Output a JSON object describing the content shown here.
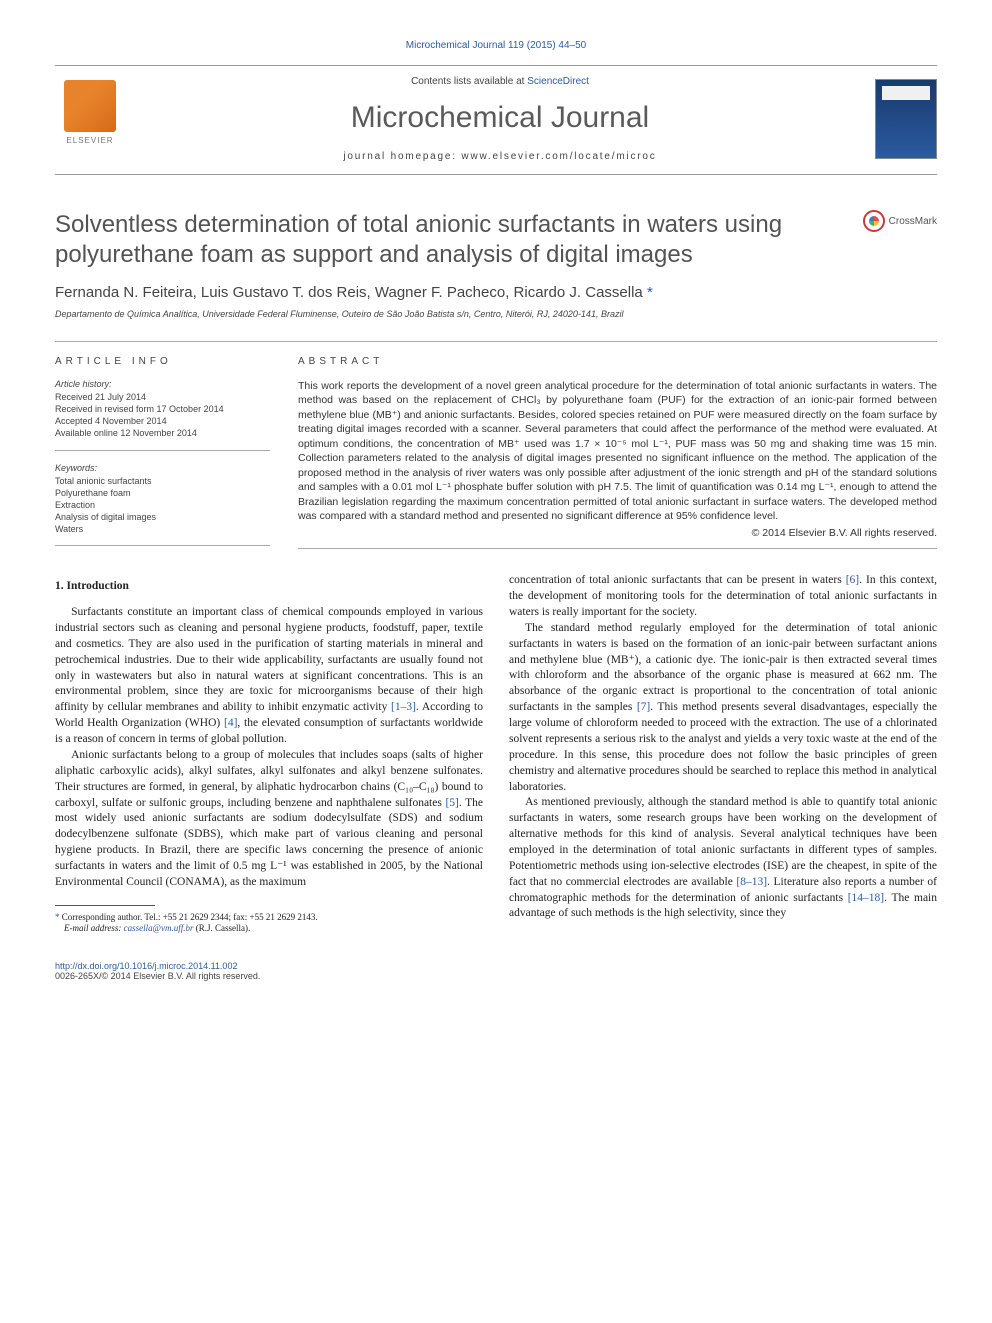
{
  "top_journal_ref": "Microchemical Journal 119 (2015) 44–50",
  "header": {
    "contents_prefix": "Contents lists available at ",
    "contents_link": "ScienceDirect",
    "journal_title": "Microchemical Journal",
    "homepage_label": "journal homepage: www.elsevier.com/locate/microc",
    "publisher_name": "ELSEVIER"
  },
  "crossmark_label": "CrossMark",
  "article": {
    "title": "Solventless determination of total anionic surfactants in waters using polyurethane foam as support and analysis of digital images",
    "authors": "Fernanda N. Feiteira, Luis Gustavo T. dos Reis, Wagner F. Pacheco, Ricardo J. Cassella ",
    "corresponding_mark": "*",
    "affiliation": "Departamento de Química Analítica, Universidade Federal Fluminense, Outeiro de São João Batista s/n, Centro, Niterói, RJ, 24020-141, Brazil"
  },
  "article_info": {
    "heading": "article info",
    "history_label": "Article history:",
    "received": "Received 21 July 2014",
    "revised": "Received in revised form 17 October 2014",
    "accepted": "Accepted 4 November 2014",
    "online": "Available online 12 November 2014",
    "keywords_label": "Keywords:",
    "keywords": [
      "Total anionic surfactants",
      "Polyurethane foam",
      "Extraction",
      "Analysis of digital images",
      "Waters"
    ]
  },
  "abstract": {
    "heading": "abstract",
    "body": "This work reports the development of a novel green analytical procedure for the determination of total anionic surfactants in waters. The method was based on the replacement of CHCl₃ by polyurethane foam (PUF) for the extraction of an ionic-pair formed between methylene blue (MB⁺) and anionic surfactants. Besides, colored species retained on PUF were measured directly on the foam surface by treating digital images recorded with a scanner. Several parameters that could affect the performance of the method were evaluated. At optimum conditions, the concentration of MB⁺ used was 1.7 × 10⁻⁵ mol L⁻¹, PUF mass was 50 mg and shaking time was 15 min. Collection parameters related to the analysis of digital images presented no significant influence on the method. The application of the proposed method in the analysis of river waters was only possible after adjustment of the ionic strength and pH of the standard solutions and samples with a 0.01 mol L⁻¹ phosphate buffer solution with pH 7.5. The limit of quantification was 0.14 mg L⁻¹, enough to attend the Brazilian legislation regarding the maximum concentration permitted of total anionic surfactant in surface waters. The developed method was compared with a standard method and presented no significant difference at 95% confidence level.",
    "copyright": "© 2014 Elsevier B.V. All rights reserved."
  },
  "intro": {
    "heading": "1. Introduction",
    "p1a": "Surfactants constitute an important class of chemical compounds employed in various industrial sectors such as cleaning and personal hygiene products, foodstuff, paper, textile and cosmetics. They are also used in the purification of starting materials in mineral and petrochemical industries. Due to their wide applicability, surfactants are usually found not only in wastewaters but also in natural waters at significant concentrations. This is an environmental problem, since they are toxic for microorganisms because of their high affinity by cellular membranes and ability to inhibit enzymatic activity ",
    "cite1": "[1–3]",
    "p1b": ". According to World Health Organization (WHO) ",
    "cite2": "[4]",
    "p1c": ", the elevated consumption of surfactants worldwide is a reason of concern in terms of global pollution.",
    "p2a": "Anionic surfactants belong to a group of molecules that includes soaps (salts of higher aliphatic carboxylic acids), alkyl sulfates, alkyl sulfonates and alkyl benzene sulfonates. Their structures are formed, in general, by aliphatic hydrocarbon chains (C₁₀–C₁₈) bound to carboxyl, sulfate or sulfonic groups, including benzene and naphthalene sulfonates ",
    "cite3": "[5]",
    "p2b": ". The most widely used anionic surfactants are sodium dodecylsulfate (SDS) and sodium dodecylbenzene sulfonate (SDBS), which make part of various cleaning and personal hygiene products. In Brazil, there are specific laws concerning the presence of anionic surfactants in waters and the limit of 0.5 mg L⁻¹ was established in 2005, by the National Environmental Council (CONAMA), as the maximum",
    "p3a": "concentration of total anionic surfactants that can be present in waters ",
    "cite4": "[6]",
    "p3b": ". In this context, the development of monitoring tools for the determination of total anionic surfactants in waters is really important for the society.",
    "p4a": "The standard method regularly employed for the determination of total anionic surfactants in waters is based on the formation of an ionic-pair between surfactant anions and methylene blue (MB⁺), a cationic dye. The ionic-pair is then extracted several times with chloroform and the absorbance of the organic phase is measured at 662 nm. The absorbance of the organic extract is proportional to the concentration of total anionic surfactants in the samples ",
    "cite5": "[7]",
    "p4b": ". This method presents several disadvantages, especially the large volume of chloroform needed to proceed with the extraction. The use of a chlorinated solvent represents a serious risk to the analyst and yields a very toxic waste at the end of the procedure. In this sense, this procedure does not follow the basic principles of green chemistry and alternative procedures should be searched to replace this method in analytical laboratories.",
    "p5a": "As mentioned previously, although the standard method is able to quantify total anionic surfactants in waters, some research groups have been working on the development of alternative methods for this kind of analysis. Several analytical techniques have been employed in the determination of total anionic surfactants in different types of samples. Potentiometric methods using ion-selective electrodes (ISE) are the cheapest, in spite of the fact that no commercial electrodes are available ",
    "cite6": "[8–13]",
    "p5b": ". Literature also reports a number of chromatographic methods for the determination of anionic surfactants ",
    "cite7": "[14–18]",
    "p5c": ". The main advantage of such methods is the high selectivity, since they"
  },
  "footnote": {
    "star": "*",
    "line1": "  Corresponding author. Tel.: +55 21 2629 2344; fax: +55 21 2629 2143.",
    "email_label": "E-mail address: ",
    "email": "cassella@vm.uff.br",
    "email_tail": " (R.J. Cassella)."
  },
  "footer": {
    "doi": "http://dx.doi.org/10.1016/j.microc.2014.11.002",
    "issn_line": "0026-265X/© 2014 Elsevier B.V. All rights reserved."
  },
  "colors": {
    "link": "#2d5c9e",
    "text": "#333333",
    "heading_gray": "#535353",
    "rule": "#aaaaaa",
    "publisher_orange": "#e8832b"
  }
}
